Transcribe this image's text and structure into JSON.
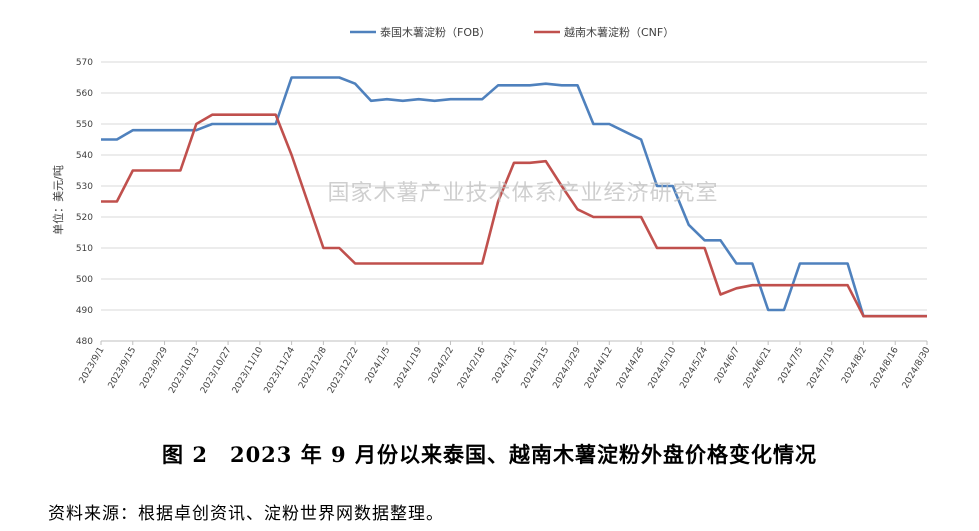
{
  "chart_data": {
    "type": "line",
    "ylabel": "单位：美元/吨",
    "ylim": [
      480,
      570
    ],
    "yticks": [
      480,
      490,
      500,
      510,
      520,
      530,
      540,
      550,
      560,
      570
    ],
    "grid": "horizontal",
    "legend_position": "top-center",
    "watermark": "国家木薯产业技术体系产业经济研究室",
    "x_tick_labels": [
      "2023/9/1",
      "2023/9/15",
      "2023/9/29",
      "2023/10/13",
      "2023/10/27",
      "2023/11/10",
      "2023/11/24",
      "2023/12/8",
      "2023/12/22",
      "2024/1/5",
      "2024/1/19",
      "2024/2/2",
      "2024/2/16",
      "2024/3/1",
      "2024/3/15",
      "2024/3/29",
      "2024/4/12",
      "2024/4/26",
      "2024/5/10",
      "2024/5/24",
      "2024/6/7",
      "2024/6/21",
      "2024/7/5",
      "2024/7/19",
      "2024/8/2",
      "2024/8/16",
      "2024/8/30"
    ],
    "x": [
      "2023/9/1",
      "2023/9/8",
      "2023/9/15",
      "2023/9/22",
      "2023/9/29",
      "2023/10/6",
      "2023/10/13",
      "2023/10/20",
      "2023/10/27",
      "2023/11/3",
      "2023/11/10",
      "2023/11/17",
      "2023/11/24",
      "2023/12/1",
      "2023/12/8",
      "2023/12/15",
      "2023/12/22",
      "2023/12/29",
      "2024/1/5",
      "2024/1/12",
      "2024/1/19",
      "2024/1/26",
      "2024/2/2",
      "2024/2/9",
      "2024/2/16",
      "2024/2/23",
      "2024/3/1",
      "2024/3/8",
      "2024/3/15",
      "2024/3/22",
      "2024/3/29",
      "2024/4/5",
      "2024/4/12",
      "2024/4/19",
      "2024/4/26",
      "2024/5/3",
      "2024/5/10",
      "2024/5/17",
      "2024/5/24",
      "2024/5/31",
      "2024/6/7",
      "2024/6/14",
      "2024/6/21",
      "2024/6/28",
      "2024/7/5",
      "2024/7/12",
      "2024/7/19",
      "2024/7/26",
      "2024/8/2",
      "2024/8/9",
      "2024/8/16",
      "2024/8/23",
      "2024/8/30"
    ],
    "series": [
      {
        "name": "泰国木薯淀粉（FOB）",
        "color": "#4f81bd",
        "values": [
          545,
          545,
          548,
          548,
          548,
          548,
          548,
          550,
          550,
          550,
          550,
          550,
          565,
          565,
          565,
          565,
          563,
          557.5,
          558,
          557.5,
          558,
          557.5,
          558,
          558,
          558,
          562.5,
          562.5,
          562.5,
          563,
          562.5,
          562.5,
          550,
          550,
          547.5,
          545,
          530,
          530,
          517.5,
          512.5,
          512.5,
          505,
          505,
          490,
          490,
          505,
          505,
          505,
          505,
          488,
          488,
          488,
          488,
          488
        ]
      },
      {
        "name": "越南木薯淀粉（CNF）",
        "color": "#c0504d",
        "values": [
          525,
          525,
          535,
          535,
          535,
          535,
          550,
          553,
          553,
          553,
          553,
          553,
          540,
          525,
          510,
          510,
          505,
          505,
          505,
          505,
          505,
          505,
          505,
          505,
          505,
          525,
          537.5,
          537.5,
          538,
          530,
          522.5,
          520,
          520,
          520,
          520,
          510,
          510,
          510,
          510,
          495,
          497,
          498,
          498,
          498,
          498,
          498,
          498,
          498,
          488,
          488,
          488,
          488,
          488
        ]
      }
    ]
  },
  "caption": "图 2　2023 年 9 月份以来泰国、越南木薯淀粉外盘价格变化情况",
  "source": "资料来源：根据卓创资讯、淀粉世界网数据整理。"
}
